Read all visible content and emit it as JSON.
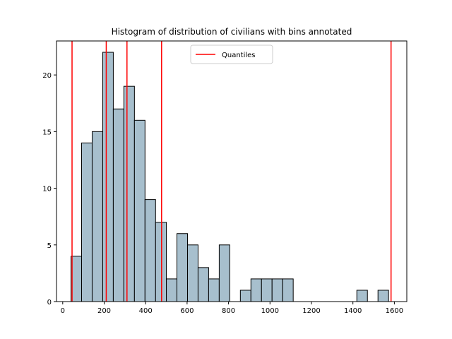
{
  "chart_data": {
    "type": "bar",
    "title": "Histogram of distribution of civilians with bins annotated",
    "xlabel": "",
    "ylabel": "",
    "xlim": [
      -30,
      1660
    ],
    "ylim": [
      0,
      23
    ],
    "xticks": [
      0,
      200,
      400,
      600,
      800,
      1000,
      1200,
      1400,
      1600
    ],
    "yticks": [
      0,
      5,
      10,
      15,
      20
    ],
    "bins": [
      {
        "x0": 40,
        "x1": 91,
        "count": 4
      },
      {
        "x0": 91,
        "x1": 142,
        "count": 14
      },
      {
        "x0": 142,
        "x1": 193,
        "count": 15
      },
      {
        "x0": 193,
        "x1": 244,
        "count": 22
      },
      {
        "x0": 244,
        "x1": 295,
        "count": 17
      },
      {
        "x0": 295,
        "x1": 346,
        "count": 19
      },
      {
        "x0": 346,
        "x1": 397,
        "count": 16
      },
      {
        "x0": 397,
        "x1": 448,
        "count": 9
      },
      {
        "x0": 448,
        "x1": 500,
        "count": 7
      },
      {
        "x0": 500,
        "x1": 551,
        "count": 2
      },
      {
        "x0": 551,
        "x1": 602,
        "count": 6
      },
      {
        "x0": 602,
        "x1": 653,
        "count": 5
      },
      {
        "x0": 653,
        "x1": 704,
        "count": 3
      },
      {
        "x0": 704,
        "x1": 755,
        "count": 2
      },
      {
        "x0": 755,
        "x1": 806,
        "count": 5
      },
      {
        "x0": 857,
        "x1": 908,
        "count": 1
      },
      {
        "x0": 908,
        "x1": 959,
        "count": 2
      },
      {
        "x0": 959,
        "x1": 1010,
        "count": 2
      },
      {
        "x0": 1010,
        "x1": 1061,
        "count": 2
      },
      {
        "x0": 1061,
        "x1": 1112,
        "count": 2
      },
      {
        "x0": 1419,
        "x1": 1470,
        "count": 1
      },
      {
        "x0": 1521,
        "x1": 1572,
        "count": 1
      }
    ],
    "quantile_lines": [
      45,
      210,
      310,
      477,
      1584
    ],
    "series": [
      {
        "name": "Quantiles",
        "kind": "vline"
      }
    ],
    "bar_color": "#a7bfcd",
    "bar_edge_color": "#000000",
    "quantile_color": "#ff0000",
    "legend_position": "top-center",
    "grid": false
  }
}
